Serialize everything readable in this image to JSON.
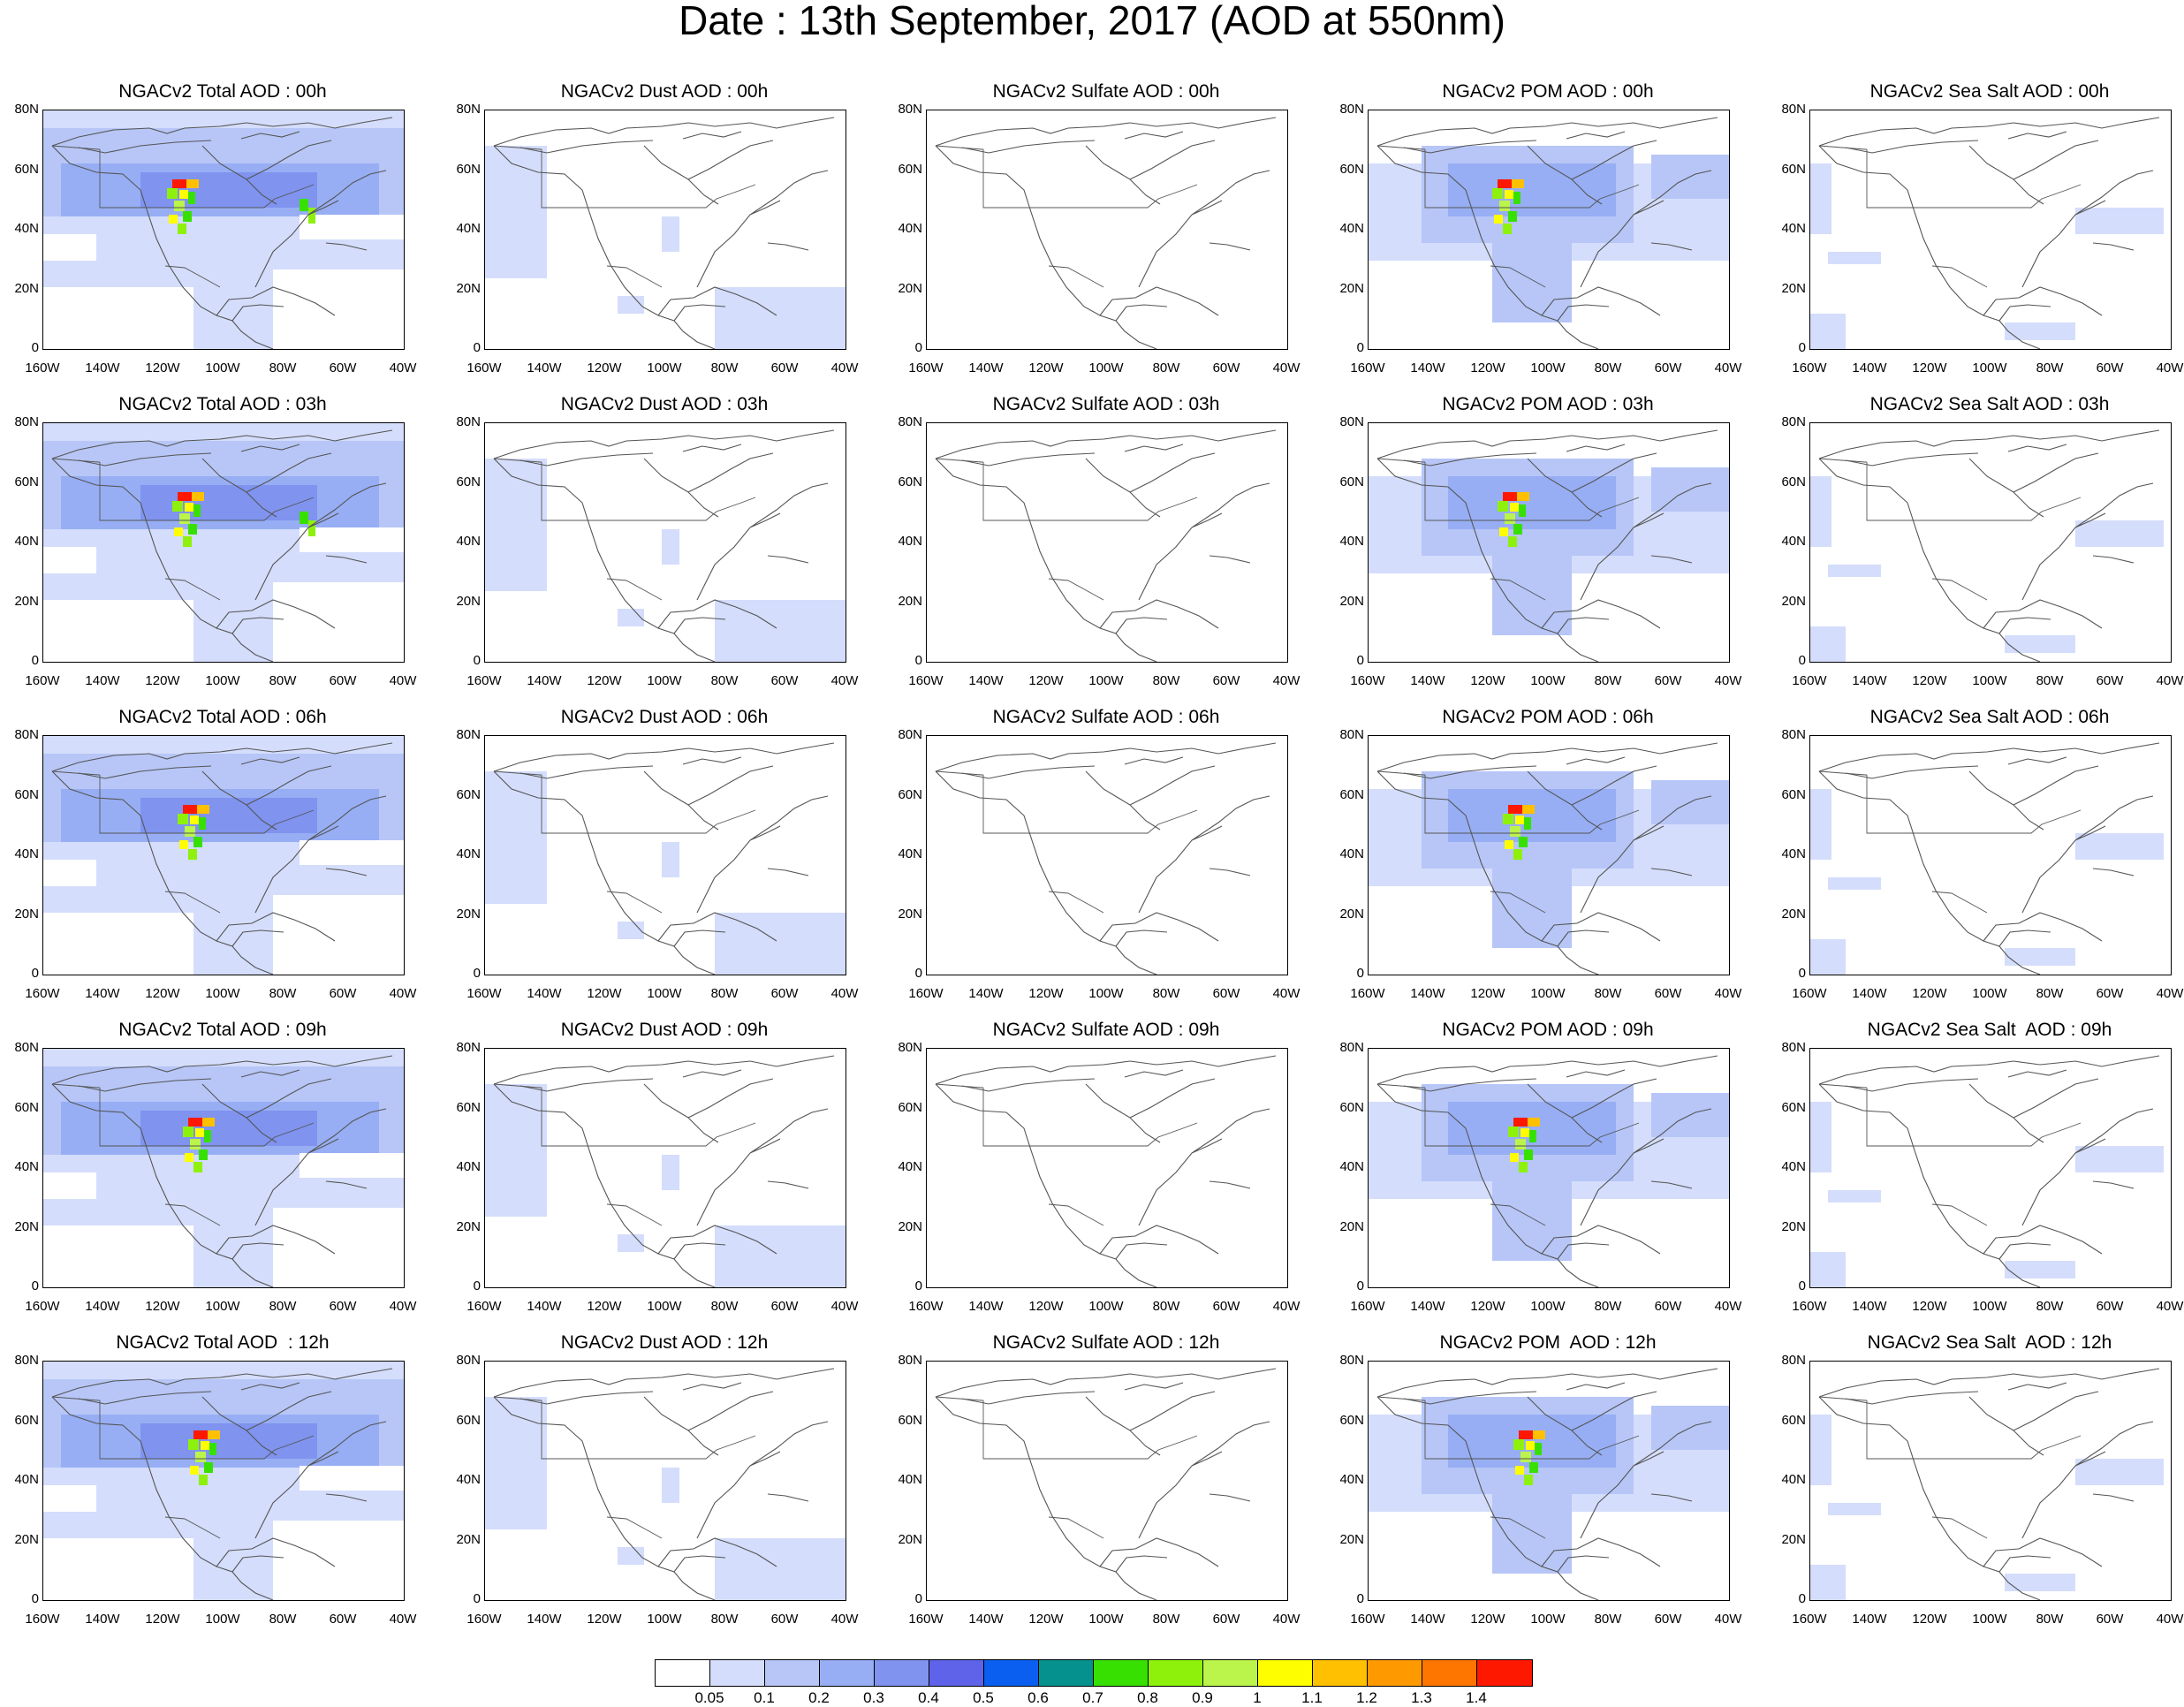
{
  "title": "Date : 13th September, 2017 (AOD at 550nm)",
  "rows": [
    [
      "NGACv2 Total AOD : 00h",
      "NGACv2 Dust AOD : 00h",
      "NGACv2 Sulfate AOD : 00h",
      "NGACv2 POM AOD : 00h",
      "NGACv2 Sea Salt AOD : 00h"
    ],
    [
      "NGACv2 Total AOD : 03h",
      "NGACv2 Dust AOD : 03h",
      "NGACv2 Sulfate AOD : 03h",
      "NGACv2 POM AOD : 03h",
      "NGACv2 Sea Salt AOD : 03h"
    ],
    [
      "NGACv2 Total AOD : 06h",
      "NGACv2 Dust AOD : 06h",
      "NGACv2 Sulfate AOD : 06h",
      "NGACv2 POM AOD : 06h",
      "NGACv2 Sea Salt AOD : 06h"
    ],
    [
      "NGACv2 Total AOD : 09h",
      "NGACv2 Dust AOD : 09h",
      "NGACv2 Sulfate AOD : 09h",
      "NGACv2 POM AOD : 09h",
      "NGACv2 Sea Salt  AOD : 09h"
    ],
    [
      "NGACv2 Total AOD  : 12h",
      "NGACv2 Dust AOD : 12h",
      "NGACv2 Sulfate AOD : 12h",
      "NGACv2 POM  AOD : 12h",
      "NGACv2 Sea Salt  AOD : 12h"
    ]
  ],
  "lat_labels": [
    "80N",
    "60N",
    "40N",
    "20N",
    "0"
  ],
  "lon_labels": [
    "160W",
    "140W",
    "120W",
    "100W",
    "80W",
    "60W",
    "40W"
  ],
  "legend": {
    "colors": [
      "#ffffff",
      "#d4ddfb",
      "#b7c6f7",
      "#97aef4",
      "#7f93ef",
      "#5e63e9",
      "#0a5ff0",
      "#05928f",
      "#37e000",
      "#8ef10b",
      "#bbf44b",
      "#fefe00",
      "#fec000",
      "#fe9a00",
      "#fe7500",
      "#fe1800"
    ],
    "labels": [
      "0.05",
      "0.1",
      "0.2",
      "0.3",
      "0.4",
      "0.5",
      "0.6",
      "0.7",
      "0.8",
      "0.9",
      "1",
      "1.1",
      "1.2",
      "1.3",
      "1.4"
    ]
  },
  "species_intensity": {
    "total": "high",
    "dust": "low",
    "sulfate": "none",
    "pom": "medium",
    "seasalt": "low"
  }
}
